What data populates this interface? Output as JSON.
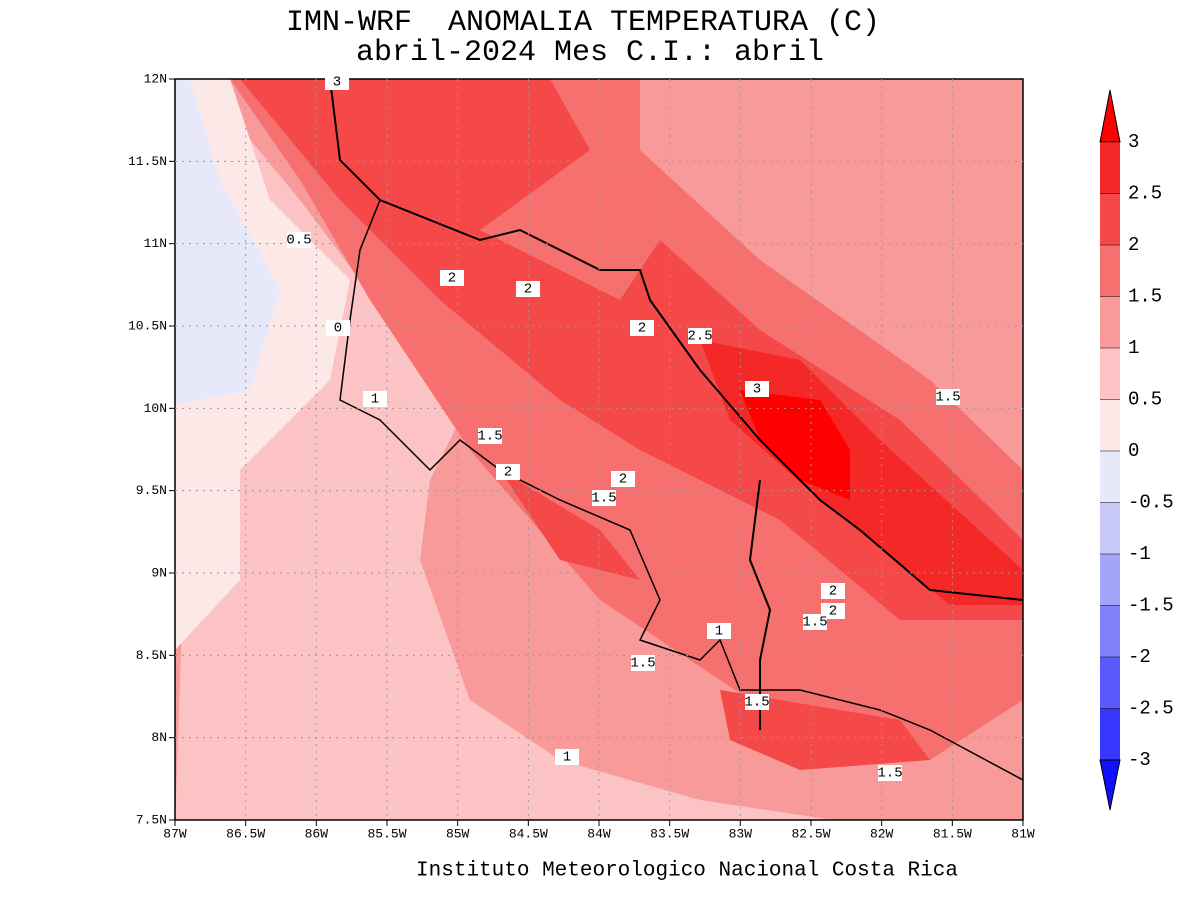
{
  "title": "IMN-WRF  ANOMALIA TEMPERATURA (C)",
  "subtitle": "abril-2024 Mes C.I.: abril",
  "footer": "Instituto Meteorologico Nacional Costa Rica",
  "map": {
    "xlim": [
      -87,
      -81
    ],
    "ylim": [
      7.5,
      12
    ],
    "xticks": [
      {
        "value": -87,
        "label": "87W"
      },
      {
        "value": -86.5,
        "label": "86.5W"
      },
      {
        "value": -86,
        "label": "86W"
      },
      {
        "value": -85.5,
        "label": "85.5W"
      },
      {
        "value": -85,
        "label": "85W"
      },
      {
        "value": -84.5,
        "label": "84.5W"
      },
      {
        "value": -84,
        "label": "84W"
      },
      {
        "value": -83.5,
        "label": "83.5W"
      },
      {
        "value": -83,
        "label": "83W"
      },
      {
        "value": -82.5,
        "label": "82.5W"
      },
      {
        "value": -82,
        "label": "82W"
      },
      {
        "value": -81.5,
        "label": "81.5W"
      },
      {
        "value": -81,
        "label": "81W"
      }
    ],
    "yticks": [
      {
        "value": 7.5,
        "label": "7.5N"
      },
      {
        "value": 8,
        "label": "8N"
      },
      {
        "value": 8.5,
        "label": "8.5N"
      },
      {
        "value": 9,
        "label": "9N"
      },
      {
        "value": 9.5,
        "label": "9.5N"
      },
      {
        "value": 10,
        "label": "10N"
      },
      {
        "value": 10.5,
        "label": "10.5N"
      },
      {
        "value": 11,
        "label": "11N"
      },
      {
        "value": 11.5,
        "label": "11.5N"
      },
      {
        "value": 12,
        "label": "12N"
      }
    ],
    "grid": true,
    "contour_labels": [
      3,
      0.5,
      2,
      2,
      0,
      2,
      2.5,
      3,
      1.5,
      1,
      1.5,
      2,
      2,
      1.5,
      2,
      2,
      1.5,
      1,
      1.5,
      1.5,
      1,
      1.5
    ]
  },
  "colorbar": {
    "levels": [
      3,
      2.5,
      2,
      1.5,
      1,
      0.5,
      0,
      -0.5,
      -1,
      -1.5,
      -2,
      -2.5,
      -3
    ],
    "colors": [
      "#ff0000",
      "#f52828",
      "#f54848",
      "#f77070",
      "#f99a9a",
      "#fbc3c3",
      "#fde8e8",
      "#e8e8fb",
      "#c8c8f8",
      "#a4a4f8",
      "#8080fa",
      "#5a5afc",
      "#3636fc",
      "#1010ff"
    ]
  }
}
